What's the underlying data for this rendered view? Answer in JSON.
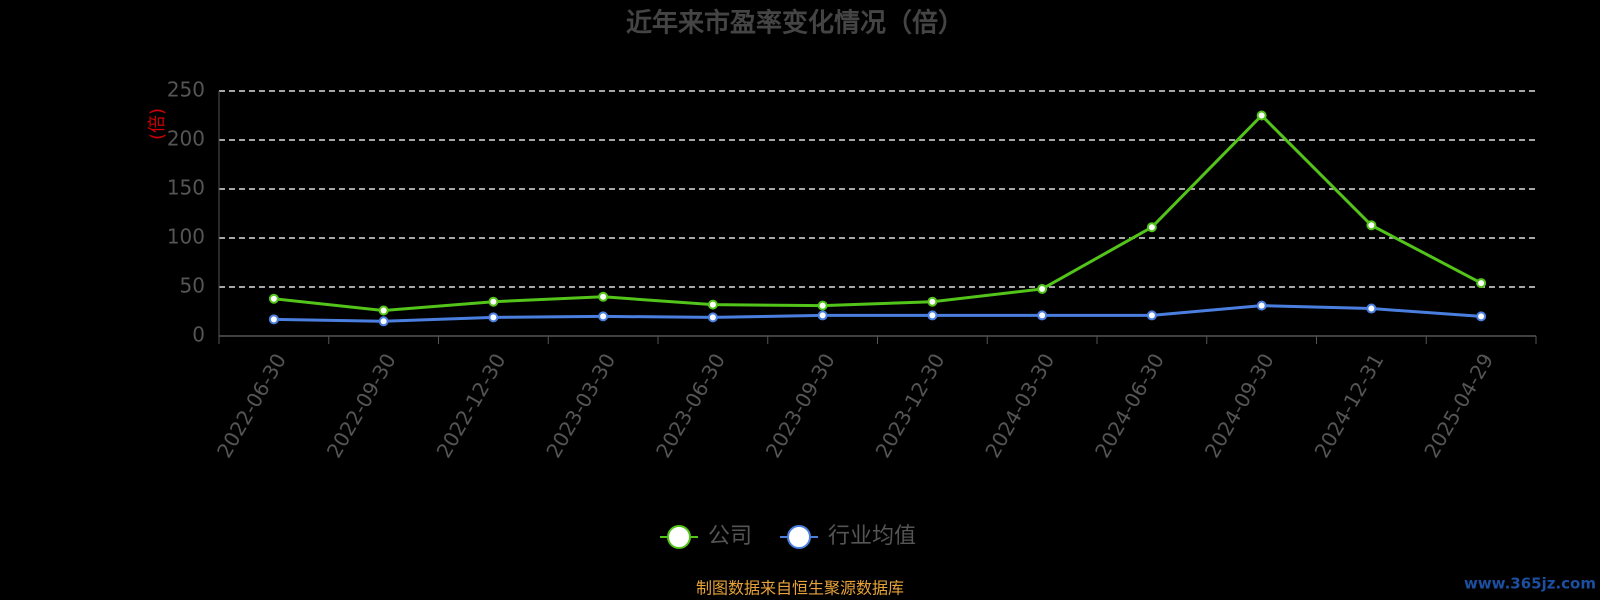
{
  "chart_data": {
    "type": "line",
    "title": "近年来市盈率变化情况（倍）",
    "y_label": "(倍)",
    "source": "制图数据来自恒生聚源数据库",
    "watermark": "www.365jz.com",
    "categories": [
      "2022-06-30",
      "2022-09-30",
      "2022-12-30",
      "2023-03-30",
      "2023-06-30",
      "2023-09-30",
      "2023-12-30",
      "2024-03-30",
      "2024-06-30",
      "2024-09-30",
      "2024-12-31",
      "2025-04-29"
    ],
    "series": [
      {
        "name": "公司",
        "color": "#52c41a",
        "values": [
          38,
          26,
          35,
          40,
          32,
          31,
          35,
          48,
          111,
          225,
          113,
          54
        ]
      },
      {
        "name": "行业均值",
        "color": "#4a7fe0",
        "values": [
          17,
          15,
          19,
          20,
          19,
          21,
          21,
          21,
          21,
          31,
          28,
          20
        ]
      }
    ],
    "ylim": [
      0,
      250
    ],
    "yticks": [
      0,
      50,
      100,
      150,
      200,
      250
    ],
    "grid": true
  }
}
